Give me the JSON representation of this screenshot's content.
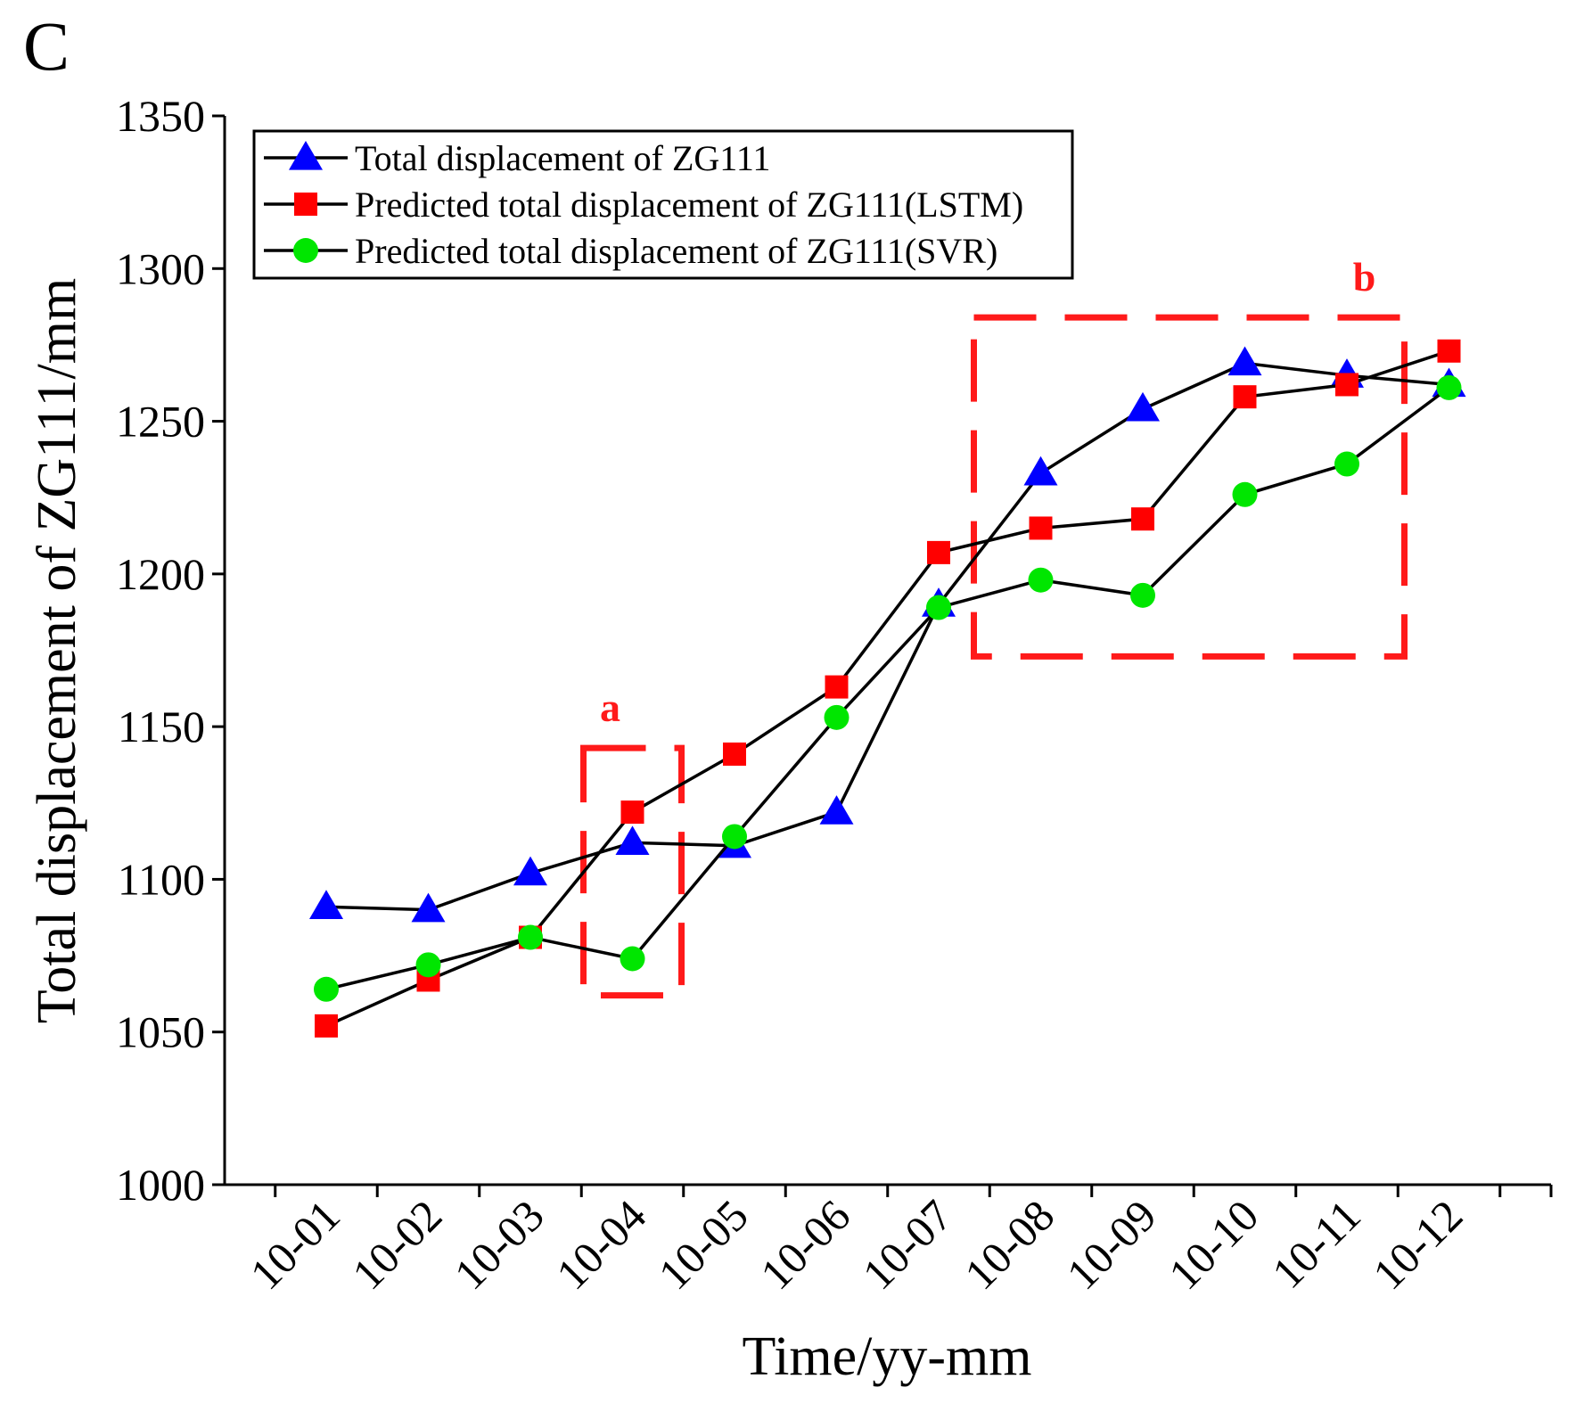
{
  "panel_label": "C",
  "chart_data": {
    "type": "line",
    "title": "",
    "xlabel": "Time/yy-mm",
    "ylabel": "Total displacement of ZG111/mm",
    "categories": [
      "10-01",
      "10-02",
      "10-03",
      "10-04",
      "10-05",
      "10-06",
      "10-07",
      "10-08",
      "10-09",
      "10-10",
      "10-11",
      "10-12"
    ],
    "ylim": [
      1000,
      1350
    ],
    "yticks": [
      1000,
      1050,
      1100,
      1150,
      1200,
      1250,
      1300,
      1350
    ],
    "grid": false,
    "legend_position": "top-left",
    "series": [
      {
        "name": "Total displacement of ZG111",
        "marker": "triangle",
        "color": "#0000ff",
        "values": [
          1091,
          1090,
          1102,
          1112,
          1111,
          1122,
          1190,
          1233,
          1254,
          1269,
          1265,
          1262
        ]
      },
      {
        "name": "Predicted total displacement of ZG111(LSTM)",
        "marker": "square",
        "color": "#ff0000",
        "values": [
          1052,
          1067,
          1081,
          1122,
          1141,
          1163,
          1207,
          1215,
          1218,
          1258,
          1262,
          1273
        ]
      },
      {
        "name": "Predicted total displacement of ZG111(SVR)",
        "marker": "circle",
        "color": "#00e600",
        "values": [
          1064,
          1072,
          1081,
          1074,
          1114,
          1153,
          1189,
          1198,
          1193,
          1226,
          1236,
          1261
        ]
      }
    ],
    "annotations": [
      {
        "label": "a",
        "x_from": "10-04",
        "x_to": "10-04",
        "y_from": 1062,
        "y_to": 1143
      },
      {
        "label": "b",
        "x_from": "10-08",
        "x_to": "10-12",
        "y_from": 1173,
        "y_to": 1284
      }
    ]
  }
}
